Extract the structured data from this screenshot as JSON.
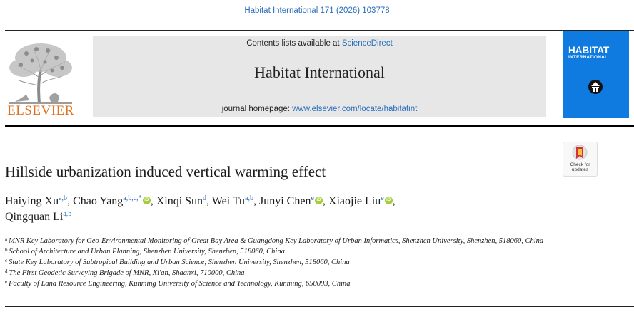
{
  "header": {
    "journal_ref": "Habitat International 171 (2026) 103778",
    "contents_prefix": "Contents lists available at ",
    "contents_link": "ScienceDirect",
    "journal_title": "Habitat International",
    "homepage_prefix": "journal homepage: ",
    "homepage_link": "www.elsevier.com/locate/habitatint",
    "publisher": "ELSEVIER"
  },
  "cover": {
    "title": "HABITAT",
    "subtitle": "INTERNATIONAL"
  },
  "check_updates": {
    "line1": "Check for",
    "line2": "updates"
  },
  "article": {
    "title": "Hillside urbanization induced vertical warming effect"
  },
  "authors": [
    {
      "name": "Haiying Xu",
      "sup": "a,b",
      "orcid": false,
      "sep": ", "
    },
    {
      "name": "Chao Yang",
      "sup": "a,b,c,*",
      "orcid": true,
      "sep": ", "
    },
    {
      "name": "Xinqi Sun",
      "sup": "d",
      "orcid": false,
      "sep": ", "
    },
    {
      "name": "Wei Tu",
      "sup": "a,b",
      "orcid": false,
      "sep": ", "
    },
    {
      "name": "Junyi Chen",
      "sup": "e",
      "orcid": true,
      "sep": ", "
    },
    {
      "name": "Xiaojie Liu",
      "sup": "e",
      "orcid": true,
      "sep": ","
    },
    {
      "name": "Qingquan Li",
      "sup": "a,b",
      "orcid": false,
      "sep": ""
    }
  ],
  "orcid_label": "iD",
  "affiliations": [
    {
      "letter": "a",
      "text": "MNR Key Laboratory for Geo-Environmental Monitoring of Great Bay Area & Guangdong Key Laboratory of Urban Informatics, Shenzhen University, Shenzhen, 518060, China"
    },
    {
      "letter": "b",
      "text": "School of Architecture and Urban Planning, Shenzhen University, Shenzhen, 518060, China"
    },
    {
      "letter": "c",
      "text": "State Key Laboratory of Subtropical Building and Urban Science, Shenzhen University, Shenzhen, 518060, China"
    },
    {
      "letter": "d",
      "text": "The First Geodetic Surveying Brigade of MNR, Xi'an, Shaanxi, 710000, China"
    },
    {
      "letter": "e",
      "text": "Faculty of Land Resource Engineering, Kunming University of Science and Technology, Kunming, 650093, China"
    }
  ],
  "colors": {
    "link": "#2a6ebb",
    "publisher_orange": "#e0701e",
    "cover_blue": "#0f7be0",
    "orcid_green": "#a6ce39",
    "masthead_gray": "#e7e7e7"
  }
}
